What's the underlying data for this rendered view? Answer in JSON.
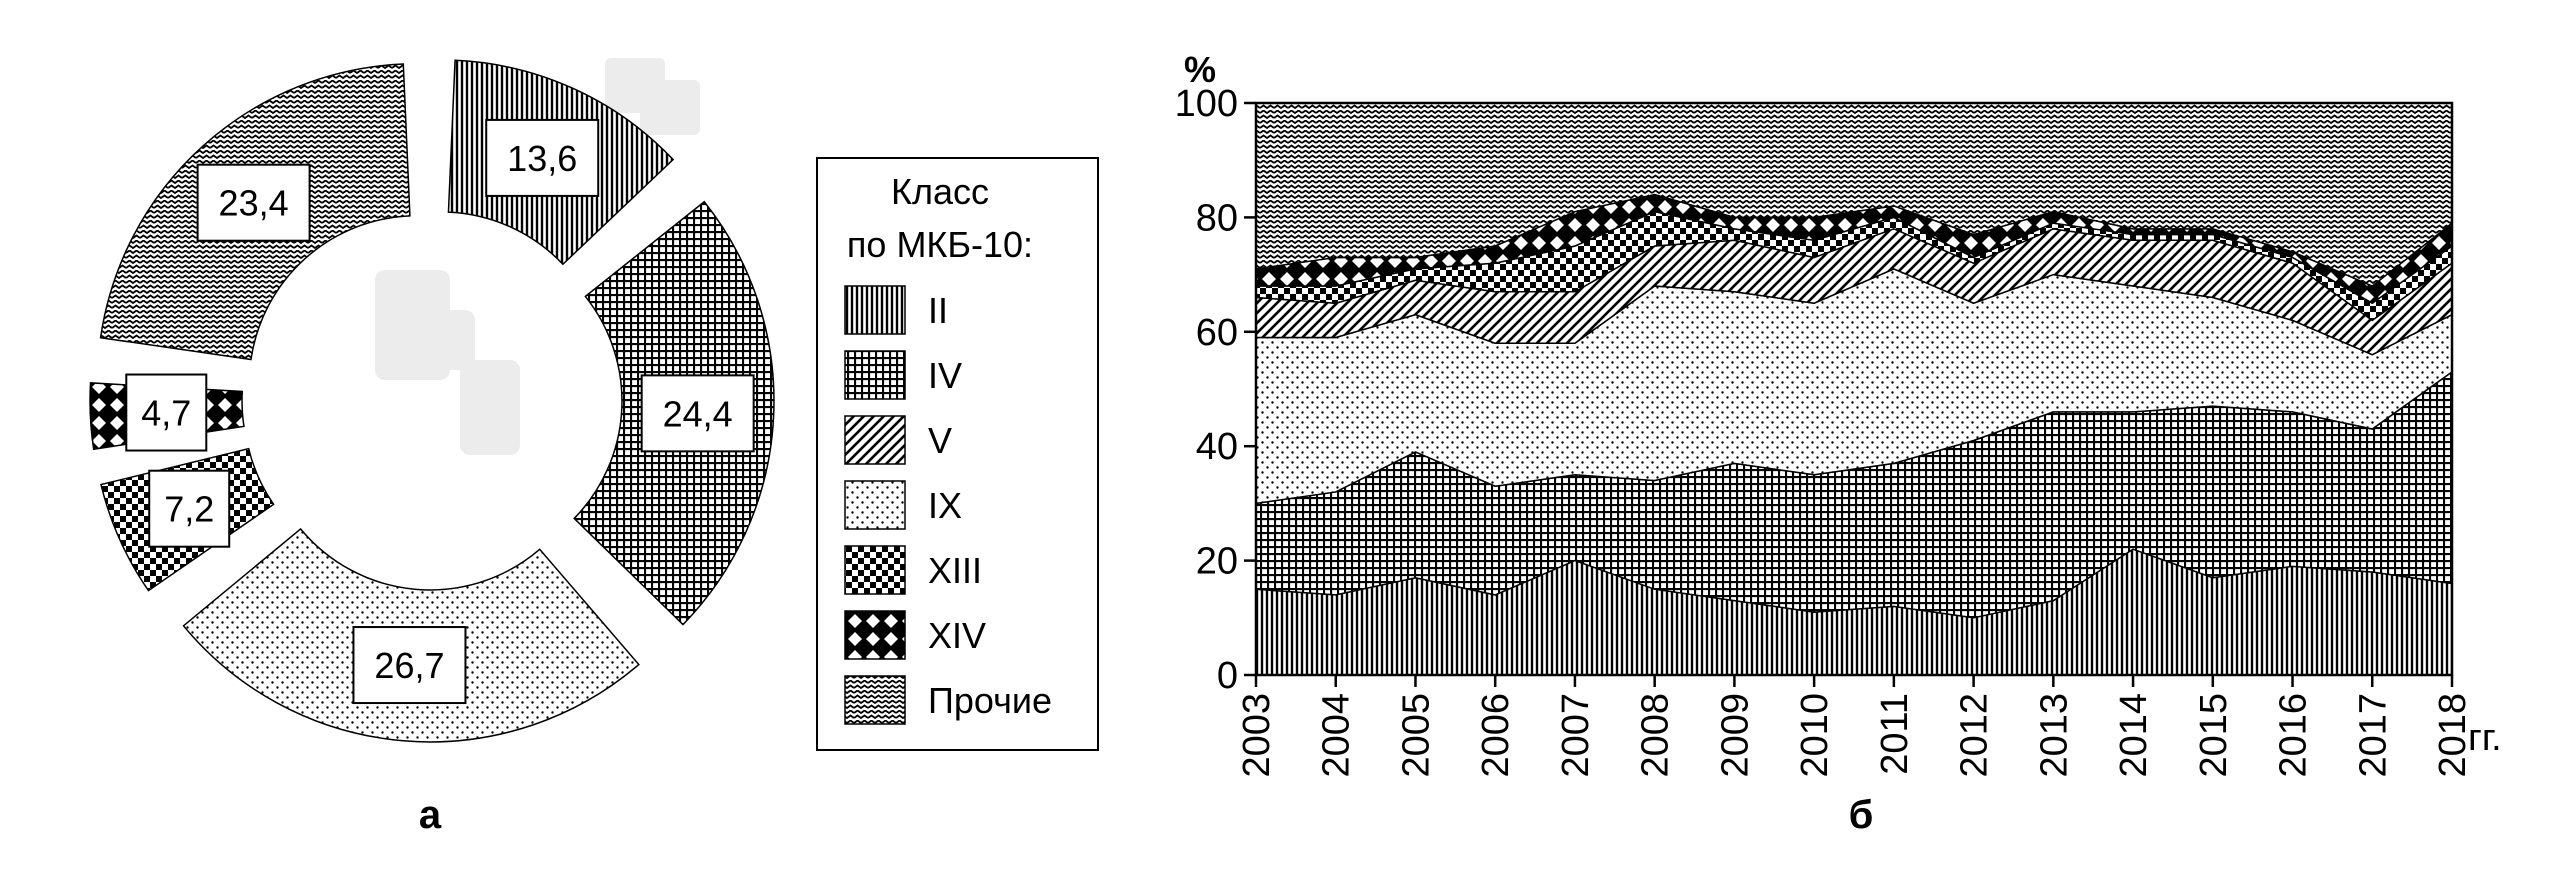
{
  "chart_data": [
    {
      "type": "pie",
      "variant": "exploded donut",
      "panel_label": "а",
      "legend": {
        "title_line1": "Класс",
        "title_line2": "по МКБ-10:",
        "placement": "between panels",
        "entries": [
          "II",
          "IV",
          "V",
          "IX",
          "XIII",
          "XIV",
          "Прочие"
        ]
      },
      "slices": [
        {
          "key": "II",
          "value": 13.6,
          "label": "13,6",
          "pattern": "vertical-lines"
        },
        {
          "key": "IV",
          "value": 24.4,
          "label": "24,4",
          "pattern": "fine-grid"
        },
        {
          "key": "IX",
          "value": 26.7,
          "label": "26,7",
          "pattern": "sparse-dots"
        },
        {
          "key": "XIII",
          "value": 7.2,
          "label": "7,2",
          "pattern": "diagonal-hatch"
        },
        {
          "key": "XIV",
          "value": 4.7,
          "label": "4,7",
          "pattern": "checkerboard"
        },
        {
          "key": "Прочие",
          "value": 23.4,
          "label": "23,4",
          "pattern": "wave"
        }
      ]
    },
    {
      "type": "area",
      "stacked": true,
      "panel_label": "б",
      "y_unit": "%",
      "x_unit": "гг.",
      "ylim": [
        0,
        100
      ],
      "yticks": [
        "0",
        "20",
        "40",
        "60",
        "80",
        "100"
      ],
      "x": [
        "2003",
        "2004",
        "2005",
        "2006",
        "2007",
        "2008",
        "2009",
        "2010",
        "2011",
        "2012",
        "2013",
        "2014",
        "2015",
        "2016",
        "2017",
        "2018"
      ],
      "series": [
        {
          "name": "II",
          "values": [
            15,
            14,
            17,
            14,
            20,
            15,
            13,
            11,
            12,
            10,
            13,
            22,
            17,
            19,
            18,
            16
          ]
        },
        {
          "name": "IV",
          "values": [
            15,
            18,
            22,
            19,
            15,
            19,
            24,
            24,
            25,
            31,
            33,
            24,
            30,
            27,
            25,
            37
          ]
        },
        {
          "name": "IX",
          "values": [
            29,
            27,
            24,
            25,
            23,
            34,
            30,
            30,
            34,
            24,
            24,
            22,
            19,
            16,
            13,
            10
          ]
        },
        {
          "name": "V",
          "values": [
            7,
            6,
            6,
            9,
            9,
            7,
            9,
            8,
            7,
            7,
            8,
            8,
            10,
            10,
            6,
            9
          ]
        },
        {
          "name": "XIII",
          "values": [
            2,
            3,
            2,
            5,
            8,
            6,
            2,
            3,
            2,
            1,
            1,
            1,
            1,
            1,
            3,
            3
          ]
        },
        {
          "name": "XIV",
          "values": [
            3,
            5,
            2,
            3,
            6,
            3,
            2,
            4,
            2,
            4,
            2,
            1,
            1,
            1,
            3,
            4
          ]
        },
        {
          "name": "Прочие",
          "values": [
            29,
            27,
            27,
            25,
            19,
            16,
            20,
            20,
            18,
            23,
            19,
            22,
            22,
            26,
            32,
            21
          ]
        }
      ]
    }
  ]
}
